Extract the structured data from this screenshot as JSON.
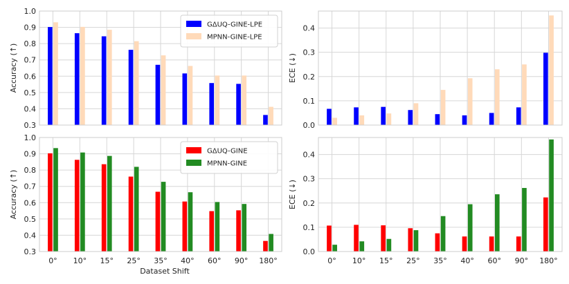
{
  "figure": {
    "xlabel": "Dataset Shift"
  },
  "chart_data": [
    {
      "type": "bar",
      "categories": [
        "0°",
        "10°",
        "15°",
        "25°",
        "35°",
        "40°",
        "60°",
        "90°",
        "180°"
      ],
      "ylabel": "Accuracy (↑)",
      "ylim": [
        0.3,
        1.0
      ],
      "yticks": [
        "0.3",
        "0.4",
        "0.5",
        "0.6",
        "0.7",
        "0.8",
        "0.9",
        "1.0"
      ],
      "show_xticklabels": false,
      "grid": true,
      "legend": "top-right",
      "series": [
        {
          "name": "GΔUQ-GINE-LPE",
          "color": "#0000ff",
          "values": [
            0.902,
            0.864,
            0.845,
            0.762,
            0.67,
            0.617,
            0.558,
            0.553,
            0.362
          ]
        },
        {
          "name": "MPNN-GINE-LPE",
          "color": "#ffdab9",
          "values": [
            0.931,
            0.903,
            0.885,
            0.815,
            0.728,
            0.663,
            0.604,
            0.604,
            0.412
          ]
        }
      ]
    },
    {
      "type": "bar",
      "categories": [
        "0°",
        "10°",
        "15°",
        "25°",
        "35°",
        "40°",
        "60°",
        "90°",
        "180°"
      ],
      "ylabel": "ECE (↓)",
      "ylim": [
        0.0,
        0.47
      ],
      "yticks": [
        "0.0",
        "0.1",
        "0.2",
        "0.3",
        "0.4"
      ],
      "show_xticklabels": false,
      "grid": true,
      "legend": "none",
      "series": [
        {
          "name": "GΔUQ-GINE-LPE",
          "color": "#0000ff",
          "values": [
            0.067,
            0.073,
            0.075,
            0.062,
            0.045,
            0.04,
            0.05,
            0.073,
            0.298
          ]
        },
        {
          "name": "MPNN-GINE-LPE",
          "color": "#ffdab9",
          "values": [
            0.03,
            0.04,
            0.048,
            0.09,
            0.145,
            0.193,
            0.23,
            0.25,
            0.452
          ]
        }
      ]
    },
    {
      "type": "bar",
      "categories": [
        "0°",
        "10°",
        "15°",
        "25°",
        "35°",
        "40°",
        "60°",
        "90°",
        "180°"
      ],
      "ylabel": "Accuracy (↑)",
      "ylim": [
        0.3,
        1.0
      ],
      "yticks": [
        "0.3",
        "0.4",
        "0.5",
        "0.6",
        "0.7",
        "0.8",
        "0.9",
        "1.0"
      ],
      "show_xticklabels": true,
      "grid": true,
      "legend": "top-right",
      "series": [
        {
          "name": "GΔUQ-GINE",
          "color": "#ff0000",
          "values": [
            0.903,
            0.863,
            0.836,
            0.76,
            0.667,
            0.607,
            0.548,
            0.553,
            0.365
          ]
        },
        {
          "name": "MPNN-GINE",
          "color": "#228b22",
          "values": [
            0.935,
            0.908,
            0.887,
            0.82,
            0.728,
            0.664,
            0.604,
            0.592,
            0.408
          ]
        }
      ]
    },
    {
      "type": "bar",
      "categories": [
        "0°",
        "10°",
        "15°",
        "25°",
        "35°",
        "40°",
        "60°",
        "90°",
        "180°"
      ],
      "ylabel": "ECE (↓)",
      "ylim": [
        0.0,
        0.47
      ],
      "yticks": [
        "0.0",
        "0.1",
        "0.2",
        "0.3",
        "0.4"
      ],
      "show_xticklabels": true,
      "grid": true,
      "legend": "none",
      "series": [
        {
          "name": "GΔUQ-GINE",
          "color": "#ff0000",
          "values": [
            0.107,
            0.11,
            0.108,
            0.096,
            0.075,
            0.062,
            0.062,
            0.062,
            0.223
          ]
        },
        {
          "name": "MPNN-GINE",
          "color": "#228b22",
          "values": [
            0.028,
            0.042,
            0.052,
            0.088,
            0.146,
            0.195,
            0.236,
            0.262,
            0.462
          ]
        }
      ]
    }
  ]
}
